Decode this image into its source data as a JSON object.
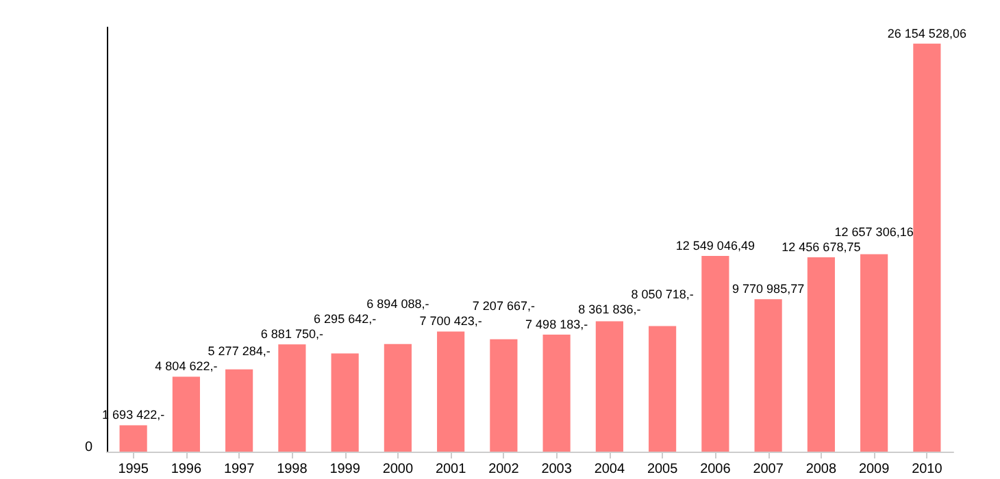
{
  "chart_data": {
    "type": "bar",
    "categories": [
      "1995",
      "1996",
      "1997",
      "1998",
      "1999",
      "2000",
      "2001",
      "2002",
      "2003",
      "2004",
      "2005",
      "2006",
      "2007",
      "2008",
      "2009",
      "2010"
    ],
    "values": [
      1693422,
      4804622,
      5277284,
      6881750,
      6295642,
      6894088,
      7700423,
      7207667,
      7498183,
      8361836,
      8050718,
      12549046.49,
      9770985.77,
      12456678.75,
      12657306.16,
      26154528.06
    ],
    "value_labels": [
      "1 693 422,-",
      "4 804 622,-",
      "5 277 284,-",
      "6 881 750,-",
      "6 295 642,-",
      "6 894 088,-",
      "7 700 423,-",
      "7 207 667,-",
      "7 498 183,-",
      "8 361 836,-",
      "8 050 718,-",
      "12 549 046,49",
      "9 770 985,77",
      "12 456 678,75",
      "12 657 306,16",
      "26 154 528,06"
    ],
    "color": "#ff7f7f",
    "ylim": [
      0,
      27200000
    ],
    "annotations": [
      "0"
    ],
    "grid": false
  }
}
